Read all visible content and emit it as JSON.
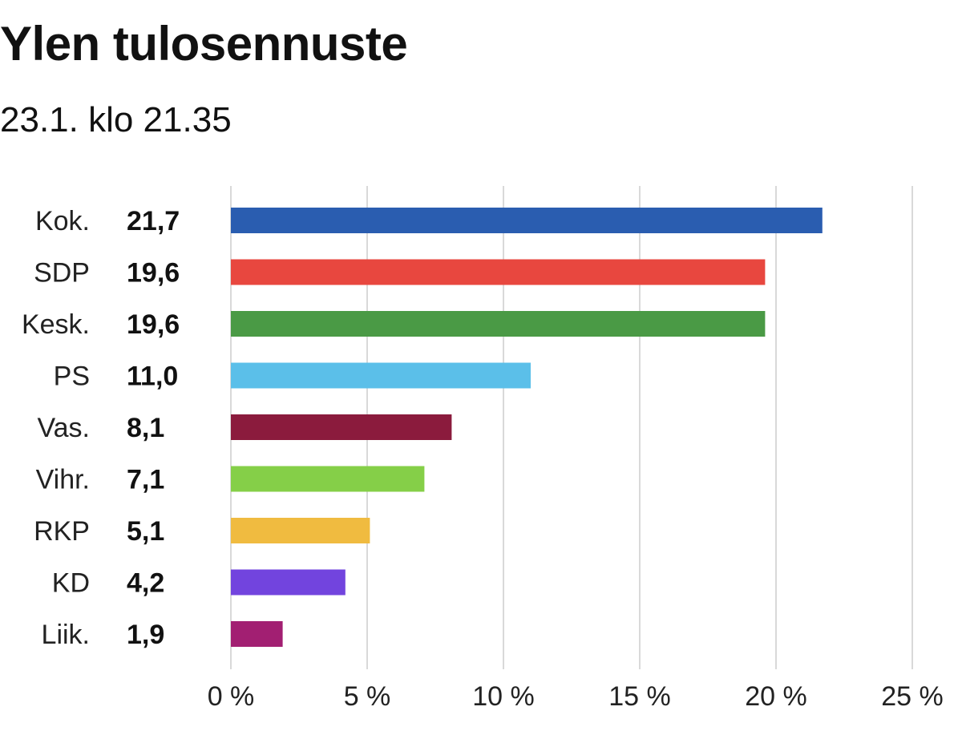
{
  "chart_data": {
    "type": "bar",
    "orientation": "horizontal",
    "title": "Ylen tulosennuste",
    "subtitle": "23.1. klo 21.35",
    "categories": [
      "Kok.",
      "SDP",
      "Kesk.",
      "PS",
      "Vas.",
      "Vihr.",
      "RKP",
      "KD",
      "Liik."
    ],
    "values": [
      21.7,
      19.6,
      19.6,
      11.0,
      8.1,
      7.1,
      5.1,
      4.2,
      1.9
    ],
    "value_labels": [
      "21,7",
      "19,6",
      "19,6",
      "11,0",
      "8,1",
      "7,1",
      "5,1",
      "4,2",
      "1,9"
    ],
    "colors": [
      "#2a5db0",
      "#e8473f",
      "#4a9a45",
      "#5bbfe9",
      "#8b1b3d",
      "#85cf48",
      "#f0bb40",
      "#7244de",
      "#a21f72"
    ],
    "xlim": [
      0,
      25
    ],
    "x_ticks": [
      0,
      5,
      10,
      15,
      20,
      25
    ],
    "x_tick_labels": [
      "0 %",
      "5 %",
      "10 %",
      "15 %",
      "20 %",
      "25 %"
    ],
    "grid": true,
    "xlabel": "",
    "ylabel": ""
  }
}
